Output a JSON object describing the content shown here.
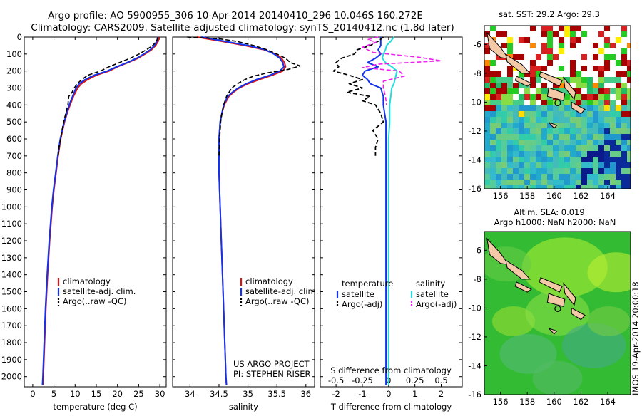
{
  "header": {
    "line1": "Argo profile: AO 5900955_306 10-Apr-2014 20140410_296 10.046S 160.272E",
    "line2": "Climatology: CARS2009. Satellite-adjusted climatology: synTS_20140412.nc (1.8d later)"
  },
  "depth_ticks": [
    "0",
    "100",
    "200",
    "300",
    "400",
    "500",
    "600",
    "700",
    "800",
    "900",
    "1000",
    "1100",
    "1200",
    "1300",
    "1400",
    "1500",
    "1600",
    "1700",
    "1800",
    "1900",
    "2000"
  ],
  "colors": {
    "climatology": "#dd1111",
    "satellite": "#1133ee",
    "argo": "#000000",
    "salinity_sat": "#22dddd",
    "salinity_argo": "#ee22ee"
  },
  "chart_data": [
    {
      "type": "line",
      "xlabel": "temperature (deg C)",
      "ylabel": "",
      "xlim": [
        -2,
        31.5
      ],
      "ylim": [
        2060,
        0
      ],
      "xticks": [
        "0",
        "5",
        "10",
        "15",
        "20",
        "25",
        "30"
      ],
      "legend": [
        "climatology",
        "satellite-adj. clim.",
        "Argo(..raw -QC)"
      ],
      "legend_position": "bottom-left",
      "series": [
        {
          "name": "climatology",
          "depth": [
            0,
            25,
            50,
            75,
            100,
            125,
            150,
            175,
            200,
            225,
            250,
            275,
            300,
            350,
            400,
            450,
            500,
            600,
            700,
            800,
            900,
            1000,
            1200,
            1400,
            1600,
            1800,
            2000,
            2050
          ],
          "values": [
            29.8,
            29.6,
            29.0,
            28.0,
            26.5,
            24.8,
            22.5,
            20.0,
            18.0,
            15.0,
            13.0,
            11.5,
            10.6,
            9.6,
            8.8,
            8.1,
            7.5,
            6.6,
            6.0,
            5.5,
            5.0,
            4.6,
            4.0,
            3.5,
            3.1,
            2.8,
            2.5,
            2.4
          ]
        },
        {
          "name": "satellite-adj. clim.",
          "depth": [
            0,
            25,
            50,
            75,
            100,
            125,
            150,
            175,
            200,
            225,
            250,
            275,
            300,
            350,
            400,
            450,
            500,
            600,
            700,
            800,
            900,
            1000,
            1200,
            1400,
            1600,
            1800,
            2000,
            2050
          ],
          "values": [
            29.5,
            29.3,
            28.7,
            27.7,
            26.2,
            24.5,
            22.3,
            19.8,
            17.6,
            14.5,
            12.4,
            11.0,
            10.2,
            9.4,
            8.6,
            8.0,
            7.4,
            6.5,
            5.9,
            5.4,
            4.9,
            4.5,
            3.9,
            3.4,
            3.0,
            2.7,
            2.4,
            2.3
          ]
        },
        {
          "name": "Argo(..raw -QC)",
          "depth": [
            0,
            25,
            50,
            75,
            100,
            125,
            150,
            175,
            200,
            225,
            250,
            275,
            300,
            325,
            350,
            375,
            400,
            450,
            500,
            550,
            600,
            650,
            700
          ],
          "values": [
            29.6,
            29.2,
            28.3,
            26.8,
            25.1,
            23.0,
            20.5,
            18.0,
            16.0,
            13.0,
            11.6,
            10.5,
            9.8,
            9.3,
            8.5,
            8.4,
            8.3,
            7.8,
            7.3,
            6.9,
            6.6,
            6.2,
            6.0
          ]
        }
      ]
    },
    {
      "type": "line",
      "xlabel": "salinity",
      "ylabel": "",
      "xlim": [
        33.7,
        36.15
      ],
      "ylim": [
        2060,
        0
      ],
      "xticks": [
        "34",
        "34.5",
        "35",
        "35.5",
        "36"
      ],
      "legend": [
        "climatology",
        "satellite-adj. clim.",
        "Argo(..raw -QC)"
      ],
      "legend_position": "bottom-left",
      "annotations": [
        "US ARGO PROJECT",
        "PI: STEPHEN RISER"
      ],
      "series": [
        {
          "name": "climatology",
          "depth": [
            0,
            25,
            50,
            75,
            100,
            125,
            150,
            175,
            200,
            225,
            250,
            275,
            300,
            325,
            350,
            400,
            450,
            500,
            550,
            600,
            700,
            800,
            900,
            1000,
            1200,
            1400,
            1600,
            1800,
            2000,
            2050
          ],
          "values": [
            34.12,
            34.55,
            34.95,
            35.28,
            35.48,
            35.58,
            35.63,
            35.65,
            35.6,
            35.42,
            35.2,
            35.0,
            34.85,
            34.75,
            34.67,
            34.59,
            34.55,
            34.52,
            34.51,
            34.5,
            34.5,
            34.5,
            34.51,
            34.52,
            34.54,
            34.56,
            34.58,
            34.6,
            34.62,
            34.63
          ]
        },
        {
          "name": "satellite-adj. clim.",
          "depth": [
            0,
            25,
            50,
            75,
            100,
            125,
            150,
            175,
            200,
            225,
            250,
            275,
            300,
            325,
            350,
            400,
            450,
            500,
            550,
            600,
            700,
            800,
            900,
            1000,
            1200,
            1400,
            1600,
            1800,
            2000,
            2050
          ],
          "values": [
            34.2,
            34.6,
            35.0,
            35.3,
            35.45,
            35.55,
            35.6,
            35.62,
            35.55,
            35.38,
            35.15,
            34.97,
            34.83,
            34.73,
            34.65,
            34.58,
            34.55,
            34.52,
            34.51,
            34.5,
            34.5,
            34.5,
            34.51,
            34.52,
            34.54,
            34.56,
            34.58,
            34.6,
            34.62,
            34.63
          ]
        },
        {
          "name": "Argo(..raw -QC)",
          "depth": [
            0,
            10,
            25,
            50,
            75,
            100,
            125,
            150,
            170,
            190,
            210,
            230,
            250,
            275,
            300,
            350,
            400,
            450,
            500,
            550,
            600,
            650,
            700
          ],
          "values": [
            33.95,
            34.5,
            34.8,
            35.1,
            35.33,
            35.5,
            35.65,
            35.73,
            35.9,
            35.7,
            35.35,
            35.1,
            34.95,
            34.82,
            34.72,
            34.63,
            34.58,
            34.55,
            34.53,
            34.52,
            34.51,
            34.51,
            34.5
          ]
        }
      ]
    },
    {
      "type": "line",
      "xlabel": "T difference from climatology",
      "xlabel2": "S difference from climatology",
      "xlim": [
        -2.6,
        2.8
      ],
      "ylim": [
        2060,
        0
      ],
      "xticks": [
        "-2",
        "-1",
        "0",
        "1",
        "2"
      ],
      "xticks2": [
        "-0.5",
        "-0.25",
        "0",
        "0.25",
        "0.5"
      ],
      "legend_groups": [
        {
          "heading": "temperature",
          "items": [
            "satellite",
            "Argo(-adj)"
          ]
        },
        {
          "heading": "salinity",
          "items": [
            "satellite",
            "Argo(-adj)"
          ]
        }
      ],
      "legend_position": "bottom",
      "series": [
        {
          "name": "temperature satellite",
          "depth": [
            0,
            25,
            50,
            75,
            100,
            125,
            150,
            175,
            200,
            225,
            250,
            275,
            300,
            350,
            400,
            500,
            600,
            800,
            1000,
            1200,
            1400,
            1600,
            1800,
            2000,
            2050
          ],
          "values": [
            -0.3,
            -0.3,
            -0.3,
            -0.4,
            -0.3,
            -0.5,
            -0.8,
            -0.4,
            -0.9,
            -1.0,
            -0.8,
            -0.7,
            -0.3,
            -0.2,
            -0.2,
            -0.1,
            -0.1,
            -0.1,
            -0.1,
            -0.1,
            -0.1,
            -0.1,
            -0.1,
            -0.1,
            -0.1
          ]
        },
        {
          "name": "temperature Argo(-adj)",
          "depth": [
            0,
            25,
            50,
            75,
            100,
            125,
            150,
            175,
            200,
            225,
            250,
            275,
            300,
            325,
            350,
            375,
            400,
            450,
            500,
            550,
            600,
            650,
            700
          ],
          "values": [
            -0.2,
            -0.4,
            -0.7,
            -1.2,
            -1.3,
            -1.8,
            -2.0,
            -1.9,
            -2.1,
            -1.5,
            -1.0,
            -1.5,
            -1.0,
            -1.6,
            -0.7,
            -1.0,
            -0.5,
            -0.3,
            -0.2,
            -0.6,
            -0.4,
            -0.5,
            -0.5
          ]
        },
        {
          "name": "salinity satellite",
          "depth": [
            0,
            25,
            50,
            75,
            100,
            125,
            150,
            175,
            200,
            225,
            250,
            275,
            300,
            350,
            400,
            450,
            500,
            600,
            800,
            1000,
            1200,
            1400,
            1600,
            1800,
            2000,
            2050
          ],
          "values": [
            0.05,
            0.02,
            -0.02,
            -0.03,
            -0.05,
            -0.06,
            -0.03,
            0.03,
            0.08,
            0.07,
            0.06,
            0.05,
            0.03,
            0.02,
            0.01,
            0.01,
            0.01,
            0.0,
            0.0,
            0.0,
            0.0,
            0.0,
            0.0,
            0.0,
            0.0,
            0.0
          ]
        },
        {
          "name": "salinity Argo(-adj)",
          "depth": [
            0,
            15,
            30,
            60,
            90,
            120,
            140,
            160,
            180,
            200,
            230,
            260,
            300,
            350,
            400
          ],
          "values": [
            -0.1,
            -0.2,
            -0.12,
            -0.25,
            -0.15,
            0.3,
            0.5,
            -0.1,
            -0.25,
            0.1,
            0.15,
            -0.05,
            -0.05,
            -0.03,
            -0.02
          ]
        }
      ]
    },
    {
      "type": "heatmap",
      "title": "sat. SST: 29.2  Argo: 29.3",
      "xticks": [
        "156",
        "158",
        "160",
        "162",
        "164"
      ],
      "yticks": [
        "-6",
        "-8",
        "-10",
        "-12",
        "-14",
        "-16"
      ],
      "xlim": [
        154.8,
        165.7
      ],
      "ylim": [
        -16,
        -4.7
      ]
    },
    {
      "type": "heatmap",
      "title": "Altim. SLA: 0.019",
      "title2": "Argo h1000: NaN h2000: NaN",
      "xticks": [
        "156",
        "158",
        "160",
        "162",
        "164"
      ],
      "yticks": [
        "-6",
        "-8",
        "-10",
        "-12",
        "-14",
        "-16"
      ],
      "xlim": [
        154.8,
        165.7
      ],
      "ylim": [
        -16,
        -4.7
      ]
    }
  ],
  "footer_vertical": "IMOS 19-Apr-2014 20:00:18"
}
